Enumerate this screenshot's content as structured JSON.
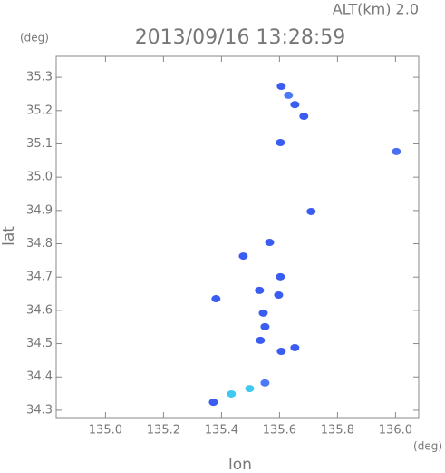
{
  "chart_data": {
    "type": "scatter",
    "title": "2013/09/16 13:28:59",
    "subtitle": "ALT(km) 2.0",
    "y_unit": "(deg)",
    "x_unit": "(deg)",
    "x_label": "lon",
    "y_label": "lat",
    "xlim": [
      134.83,
      136.08
    ],
    "ylim": [
      34.278,
      35.363
    ],
    "xticks": [
      {
        "value": 135,
        "label": "135.0"
      },
      135.2,
      135.4,
      135.6,
      135.8,
      {
        "value": 136,
        "label": "136.0"
      }
    ],
    "yticks": [
      34.3,
      34.4,
      34.5,
      34.6,
      34.7,
      34.8,
      34.9,
      {
        "value": 35,
        "label": "35.0"
      },
      35.1,
      35.2,
      35.3
    ],
    "x": [
      135.606,
      135.631,
      135.653,
      135.684,
      135.603,
      136.003,
      135.709,
      135.566,
      135.475,
      135.603,
      135.531,
      135.381,
      135.597,
      135.544,
      135.55,
      135.534,
      135.606,
      135.653,
      135.55,
      135.497,
      135.434,
      135.372
    ],
    "values": [
      35.273,
      35.246,
      35.218,
      35.183,
      35.104,
      35.077,
      34.897,
      34.804,
      34.763,
      34.701,
      34.66,
      34.635,
      34.646,
      34.592,
      34.551,
      34.51,
      34.477,
      34.488,
      34.382,
      34.365,
      34.349,
      34.324
    ],
    "point_colors": [
      "#3a5cf0",
      "#4a7af5",
      "#3a5cf0",
      "#3a5cf0",
      "#3a5cf0",
      "#4a6ff0",
      "#3a5cf0",
      "#3a5cf0",
      "#3a5cf0",
      "#3a5cf0",
      "#3a5cf0",
      "#3a5cf0",
      "#3a5cf0",
      "#3a5cf0",
      "#3a5cf0",
      "#3a5cf0",
      "#3a5cf0",
      "#3a5cf0",
      "#4a7af5",
      "#40c8f0",
      "#40c8f0",
      "#3a5cf0"
    ]
  }
}
